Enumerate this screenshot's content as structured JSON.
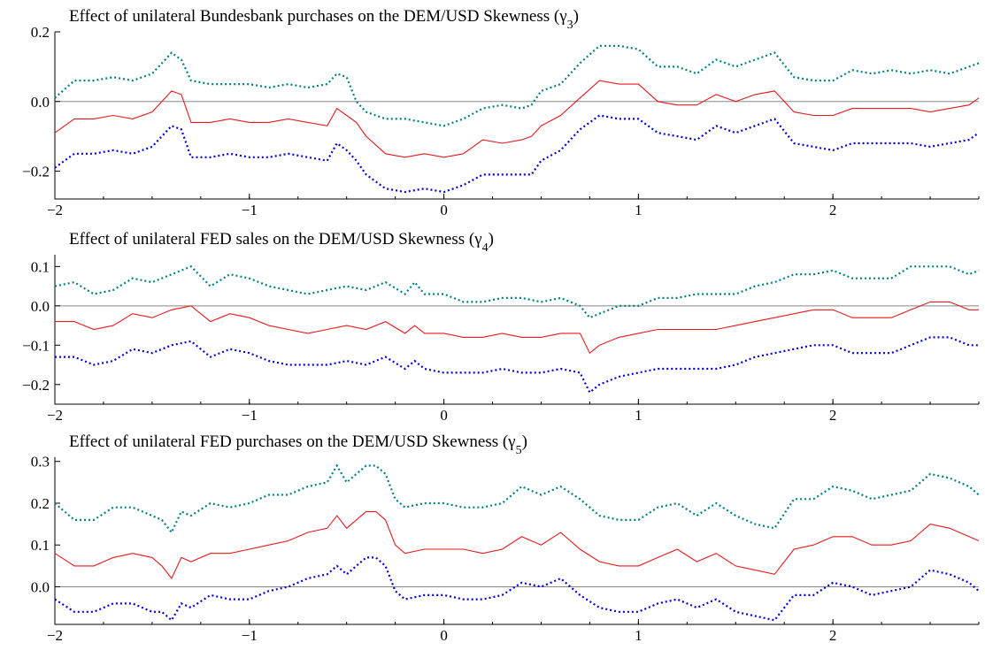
{
  "chart_data": [
    {
      "type": "line",
      "title": "Effect of unilateral Bundesbank purchases on the DEM/USD Skewness (γ3)",
      "title_main": "Effect of unilateral Bundesbank purchases on the DEM/USD Skewness (γ",
      "title_sub": "3",
      "title_end": ")",
      "xlim": [
        -2,
        2.75
      ],
      "ylim": [
        -0.28,
        0.2
      ],
      "xticks": [
        -2,
        -1,
        0,
        1,
        2
      ],
      "xtick_labels": [
        "−2",
        "−1",
        "0",
        "1",
        "2"
      ],
      "yticks": [
        -0.2,
        0.0,
        0.2
      ],
      "ytick_labels": [
        "−0.2",
        "0.0",
        "0.2"
      ],
      "zero_line": true,
      "x": [
        -2.0,
        -1.9,
        -1.8,
        -1.7,
        -1.6,
        -1.5,
        -1.4,
        -1.35,
        -1.3,
        -1.2,
        -1.1,
        -1.0,
        -0.9,
        -0.8,
        -0.7,
        -0.6,
        -0.55,
        -0.5,
        -0.45,
        -0.4,
        -0.3,
        -0.2,
        -0.1,
        0.0,
        0.1,
        0.2,
        0.3,
        0.4,
        0.45,
        0.5,
        0.6,
        0.7,
        0.8,
        0.9,
        1.0,
        1.1,
        1.2,
        1.3,
        1.4,
        1.5,
        1.6,
        1.7,
        1.8,
        1.9,
        2.0,
        2.1,
        2.2,
        2.3,
        2.4,
        2.5,
        2.6,
        2.7,
        2.75
      ],
      "series": [
        {
          "color": "#008080",
          "values": [
            0.01,
            0.06,
            0.06,
            0.07,
            0.06,
            0.08,
            0.14,
            0.12,
            0.06,
            0.05,
            0.05,
            0.05,
            0.04,
            0.05,
            0.04,
            0.05,
            0.08,
            0.07,
            0.0,
            -0.03,
            -0.05,
            -0.05,
            -0.06,
            -0.07,
            -0.05,
            -0.02,
            -0.01,
            -0.02,
            -0.01,
            0.03,
            0.05,
            0.11,
            0.16,
            0.16,
            0.15,
            0.1,
            0.1,
            0.08,
            0.12,
            0.1,
            0.12,
            0.14,
            0.07,
            0.06,
            0.06,
            0.09,
            0.08,
            0.09,
            0.08,
            0.09,
            0.08,
            0.1,
            0.11
          ]
        },
        {
          "color": "#e41a1c",
          "values": [
            -0.09,
            -0.05,
            -0.05,
            -0.04,
            -0.05,
            -0.03,
            0.03,
            0.02,
            -0.06,
            -0.06,
            -0.05,
            -0.06,
            -0.06,
            -0.05,
            -0.06,
            -0.07,
            -0.02,
            -0.04,
            -0.06,
            -0.1,
            -0.15,
            -0.16,
            -0.15,
            -0.16,
            -0.15,
            -0.11,
            -0.12,
            -0.11,
            -0.1,
            -0.07,
            -0.04,
            0.01,
            0.06,
            0.05,
            0.05,
            0.0,
            -0.01,
            -0.01,
            0.02,
            0.0,
            0.02,
            0.03,
            -0.03,
            -0.04,
            -0.04,
            -0.02,
            -0.02,
            -0.02,
            -0.02,
            -0.03,
            -0.02,
            -0.01,
            0.01
          ]
        },
        {
          "color": "#0000e0",
          "values": [
            -0.19,
            -0.15,
            -0.15,
            -0.14,
            -0.15,
            -0.13,
            -0.07,
            -0.08,
            -0.16,
            -0.16,
            -0.15,
            -0.16,
            -0.16,
            -0.15,
            -0.16,
            -0.17,
            -0.12,
            -0.14,
            -0.17,
            -0.21,
            -0.25,
            -0.26,
            -0.25,
            -0.26,
            -0.24,
            -0.21,
            -0.21,
            -0.21,
            -0.21,
            -0.17,
            -0.14,
            -0.08,
            -0.04,
            -0.05,
            -0.05,
            -0.09,
            -0.1,
            -0.11,
            -0.07,
            -0.09,
            -0.07,
            -0.05,
            -0.12,
            -0.13,
            -0.14,
            -0.12,
            -0.12,
            -0.12,
            -0.12,
            -0.13,
            -0.12,
            -0.11,
            -0.09
          ]
        }
      ]
    },
    {
      "type": "line",
      "title": "Effect of unilateral FED sales on the DEM/USD Skewness (γ4)",
      "title_main": "Effect of unilateral FED sales on the DEM/USD Skewness (γ",
      "title_sub": "4",
      "title_end": ")",
      "xlim": [
        -2,
        2.75
      ],
      "ylim": [
        -0.25,
        0.13
      ],
      "xticks": [
        -2,
        -1,
        0,
        1,
        2
      ],
      "xtick_labels": [
        "−2",
        "−1",
        "0",
        "1",
        "2"
      ],
      "yticks": [
        -0.2,
        -0.1,
        0.0,
        0.1
      ],
      "ytick_labels": [
        "−0.2",
        "−0.1",
        "0.0",
        "0.1"
      ],
      "zero_line": true,
      "x": [
        -2.0,
        -1.9,
        -1.8,
        -1.7,
        -1.6,
        -1.5,
        -1.4,
        -1.3,
        -1.2,
        -1.1,
        -1.0,
        -0.9,
        -0.8,
        -0.7,
        -0.6,
        -0.5,
        -0.4,
        -0.3,
        -0.2,
        -0.15,
        -0.1,
        0.0,
        0.1,
        0.2,
        0.3,
        0.4,
        0.5,
        0.6,
        0.7,
        0.75,
        0.8,
        0.9,
        1.0,
        1.1,
        1.2,
        1.3,
        1.4,
        1.5,
        1.6,
        1.7,
        1.8,
        1.9,
        2.0,
        2.1,
        2.2,
        2.3,
        2.4,
        2.5,
        2.6,
        2.7,
        2.75
      ],
      "series": [
        {
          "color": "#008080",
          "values": [
            0.05,
            0.06,
            0.03,
            0.04,
            0.07,
            0.06,
            0.08,
            0.1,
            0.05,
            0.08,
            0.07,
            0.05,
            0.04,
            0.03,
            0.04,
            0.05,
            0.04,
            0.06,
            0.03,
            0.06,
            0.03,
            0.03,
            0.01,
            0.01,
            0.02,
            0.02,
            0.01,
            0.02,
            0.0,
            -0.03,
            -0.02,
            0.0,
            0.0,
            0.02,
            0.02,
            0.03,
            0.03,
            0.03,
            0.05,
            0.06,
            0.08,
            0.08,
            0.09,
            0.07,
            0.07,
            0.07,
            0.1,
            0.1,
            0.1,
            0.08,
            0.09
          ]
        },
        {
          "color": "#e41a1c",
          "values": [
            -0.04,
            -0.04,
            -0.06,
            -0.05,
            -0.02,
            -0.03,
            -0.01,
            0.0,
            -0.04,
            -0.02,
            -0.03,
            -0.05,
            -0.06,
            -0.07,
            -0.06,
            -0.05,
            -0.06,
            -0.04,
            -0.07,
            -0.05,
            -0.07,
            -0.07,
            -0.08,
            -0.08,
            -0.07,
            -0.08,
            -0.08,
            -0.07,
            -0.07,
            -0.12,
            -0.1,
            -0.08,
            -0.07,
            -0.06,
            -0.06,
            -0.06,
            -0.06,
            -0.05,
            -0.04,
            -0.03,
            -0.02,
            -0.01,
            -0.01,
            -0.03,
            -0.03,
            -0.03,
            -0.01,
            0.01,
            0.01,
            -0.01,
            -0.01
          ]
        },
        {
          "color": "#0000e0",
          "values": [
            -0.13,
            -0.13,
            -0.15,
            -0.14,
            -0.11,
            -0.12,
            -0.1,
            -0.09,
            -0.13,
            -0.11,
            -0.12,
            -0.14,
            -0.15,
            -0.15,
            -0.15,
            -0.14,
            -0.15,
            -0.13,
            -0.16,
            -0.14,
            -0.16,
            -0.17,
            -0.17,
            -0.17,
            -0.16,
            -0.17,
            -0.17,
            -0.16,
            -0.17,
            -0.22,
            -0.2,
            -0.18,
            -0.17,
            -0.16,
            -0.16,
            -0.16,
            -0.16,
            -0.15,
            -0.13,
            -0.12,
            -0.11,
            -0.1,
            -0.1,
            -0.12,
            -0.12,
            -0.12,
            -0.1,
            -0.08,
            -0.08,
            -0.1,
            -0.1
          ]
        }
      ]
    },
    {
      "type": "line",
      "title": "Effect of unilateral FED purchases on the DEM/USD Skewness (γ5)",
      "title_main": "Effect of unilateral FED purchases on the DEM/USD Skewness (γ",
      "title_sub": "5",
      "title_end": ")",
      "xlim": [
        -2,
        2.75
      ],
      "ylim": [
        -0.09,
        0.31
      ],
      "xticks": [
        -2,
        -1,
        0,
        1,
        2
      ],
      "xtick_labels": [
        "−2",
        "−1",
        "0",
        "1",
        "2"
      ],
      "yticks": [
        0.0,
        0.1,
        0.2,
        0.3
      ],
      "ytick_labels": [
        "0.0",
        "0.1",
        "0.2",
        "0.3"
      ],
      "zero_line": true,
      "x": [
        -2.0,
        -1.9,
        -1.8,
        -1.7,
        -1.6,
        -1.5,
        -1.45,
        -1.4,
        -1.35,
        -1.3,
        -1.2,
        -1.1,
        -1.0,
        -0.9,
        -0.8,
        -0.7,
        -0.6,
        -0.55,
        -0.5,
        -0.4,
        -0.35,
        -0.3,
        -0.25,
        -0.2,
        -0.1,
        0.0,
        0.1,
        0.2,
        0.3,
        0.4,
        0.5,
        0.6,
        0.7,
        0.8,
        0.9,
        1.0,
        1.1,
        1.2,
        1.3,
        1.4,
        1.5,
        1.6,
        1.7,
        1.8,
        1.9,
        2.0,
        2.1,
        2.2,
        2.3,
        2.4,
        2.5,
        2.6,
        2.7,
        2.75
      ],
      "series": [
        {
          "color": "#008080",
          "values": [
            0.2,
            0.16,
            0.16,
            0.19,
            0.19,
            0.17,
            0.16,
            0.13,
            0.18,
            0.17,
            0.2,
            0.19,
            0.2,
            0.22,
            0.22,
            0.24,
            0.25,
            0.29,
            0.25,
            0.29,
            0.29,
            0.27,
            0.21,
            0.19,
            0.2,
            0.2,
            0.19,
            0.19,
            0.2,
            0.24,
            0.22,
            0.24,
            0.21,
            0.17,
            0.16,
            0.16,
            0.19,
            0.2,
            0.17,
            0.2,
            0.17,
            0.15,
            0.14,
            0.21,
            0.21,
            0.24,
            0.23,
            0.21,
            0.22,
            0.23,
            0.27,
            0.26,
            0.24,
            0.22
          ]
        },
        {
          "color": "#e41a1c",
          "values": [
            0.08,
            0.05,
            0.05,
            0.07,
            0.08,
            0.07,
            0.05,
            0.02,
            0.07,
            0.06,
            0.08,
            0.08,
            0.09,
            0.1,
            0.11,
            0.13,
            0.14,
            0.17,
            0.14,
            0.18,
            0.18,
            0.16,
            0.1,
            0.08,
            0.09,
            0.09,
            0.09,
            0.08,
            0.09,
            0.12,
            0.1,
            0.13,
            0.09,
            0.06,
            0.05,
            0.05,
            0.07,
            0.09,
            0.06,
            0.08,
            0.05,
            0.04,
            0.03,
            0.09,
            0.1,
            0.12,
            0.12,
            0.1,
            0.1,
            0.11,
            0.15,
            0.14,
            0.12,
            0.11
          ]
        },
        {
          "color": "#0000e0",
          "values": [
            -0.03,
            -0.06,
            -0.06,
            -0.04,
            -0.04,
            -0.06,
            -0.06,
            -0.08,
            -0.04,
            -0.05,
            -0.02,
            -0.03,
            -0.03,
            -0.01,
            0.0,
            0.02,
            0.03,
            0.05,
            0.03,
            0.07,
            0.07,
            0.05,
            -0.01,
            -0.03,
            -0.02,
            -0.02,
            -0.03,
            -0.03,
            -0.02,
            0.01,
            0.0,
            0.02,
            -0.02,
            -0.05,
            -0.06,
            -0.06,
            -0.04,
            -0.03,
            -0.05,
            -0.03,
            -0.06,
            -0.07,
            -0.08,
            -0.02,
            -0.02,
            0.01,
            0.0,
            -0.02,
            -0.01,
            0.0,
            0.04,
            0.03,
            0.01,
            -0.01
          ]
        }
      ]
    }
  ]
}
